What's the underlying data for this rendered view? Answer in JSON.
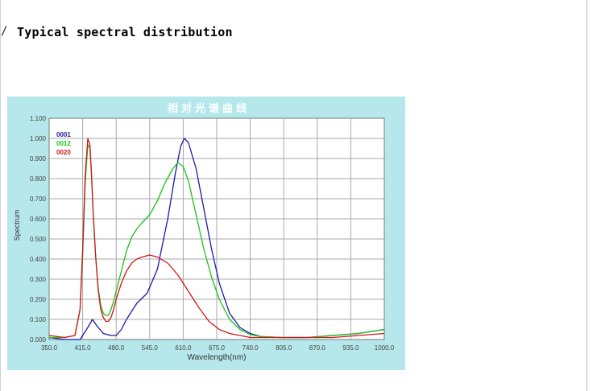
{
  "page": {
    "heading": "Typical spectral distribution",
    "bullet": "/"
  },
  "chart_data": {
    "type": "line",
    "title": "相对光谱曲线",
    "xlabel": "Wavelength(nm)",
    "ylabel": "Spectrum",
    "xlim": [
      350,
      1000
    ],
    "ylim": [
      0,
      1.1
    ],
    "x_ticks": [
      "350.0",
      "415.0",
      "480.0",
      "545.0",
      "610.0",
      "675.0",
      "740.0",
      "805.0",
      "870.0",
      "935.0",
      "1000.0"
    ],
    "y_ticks": [
      "0.000",
      "0.100",
      "0.200",
      "0.300",
      "0.400",
      "0.500",
      "0.600",
      "0.700",
      "0.800",
      "0.900",
      "1.000",
      "1.100"
    ],
    "grid": true,
    "legend_position": "top-left",
    "series": [
      {
        "name": "0001",
        "color": "#1a1aa8",
        "x": [
          350,
          380,
          410,
          425,
          434,
          442,
          455,
          470,
          480,
          490,
          500,
          520,
          540,
          560,
          580,
          595,
          605,
          612,
          620,
          635,
          650,
          665,
          680,
          700,
          720,
          740,
          760,
          800,
          850,
          900,
          950,
          1000
        ],
        "y": [
          0.01,
          0.0,
          0.0,
          0.06,
          0.1,
          0.07,
          0.03,
          0.02,
          0.02,
          0.05,
          0.1,
          0.18,
          0.23,
          0.35,
          0.6,
          0.83,
          0.96,
          1.0,
          0.98,
          0.85,
          0.65,
          0.45,
          0.28,
          0.13,
          0.06,
          0.03,
          0.015,
          0.01,
          0.01,
          0.02,
          0.03,
          0.05
        ]
      },
      {
        "name": "0012",
        "color": "#18c418",
        "x": [
          350,
          380,
          400,
          410,
          415,
          420,
          425,
          429,
          432,
          435,
          440,
          445,
          450,
          455,
          460,
          465,
          470,
          475,
          480,
          490,
          500,
          510,
          520,
          530,
          545,
          560,
          575,
          590,
          600,
          610,
          620,
          635,
          650,
          665,
          680,
          700,
          720,
          740,
          760,
          800,
          850,
          900,
          950,
          1000
        ],
        "y": [
          0.01,
          0.01,
          0.02,
          0.15,
          0.42,
          0.78,
          0.97,
          0.95,
          0.82,
          0.65,
          0.42,
          0.26,
          0.17,
          0.13,
          0.12,
          0.12,
          0.15,
          0.19,
          0.24,
          0.34,
          0.44,
          0.51,
          0.55,
          0.58,
          0.62,
          0.69,
          0.78,
          0.85,
          0.88,
          0.86,
          0.79,
          0.62,
          0.45,
          0.31,
          0.2,
          0.1,
          0.05,
          0.025,
          0.015,
          0.01,
          0.01,
          0.02,
          0.03,
          0.05
        ]
      },
      {
        "name": "0020",
        "color": "#d01818",
        "x": [
          350,
          380,
          400,
          410,
          415,
          420,
          425,
          429,
          432,
          435,
          440,
          445,
          450,
          455,
          460,
          465,
          470,
          475,
          480,
          490,
          500,
          510,
          520,
          530,
          545,
          560,
          580,
          600,
          620,
          640,
          660,
          680,
          700,
          720,
          740,
          760,
          800,
          850,
          900,
          950,
          1000
        ],
        "y": [
          0.02,
          0.01,
          0.02,
          0.15,
          0.45,
          0.82,
          1.0,
          0.97,
          0.83,
          0.65,
          0.42,
          0.25,
          0.15,
          0.11,
          0.09,
          0.09,
          0.11,
          0.15,
          0.2,
          0.28,
          0.34,
          0.38,
          0.4,
          0.41,
          0.42,
          0.41,
          0.38,
          0.32,
          0.24,
          0.16,
          0.09,
          0.05,
          0.03,
          0.02,
          0.01,
          0.01,
          0.01,
          0.01,
          0.01,
          0.02,
          0.03
        ]
      }
    ]
  }
}
